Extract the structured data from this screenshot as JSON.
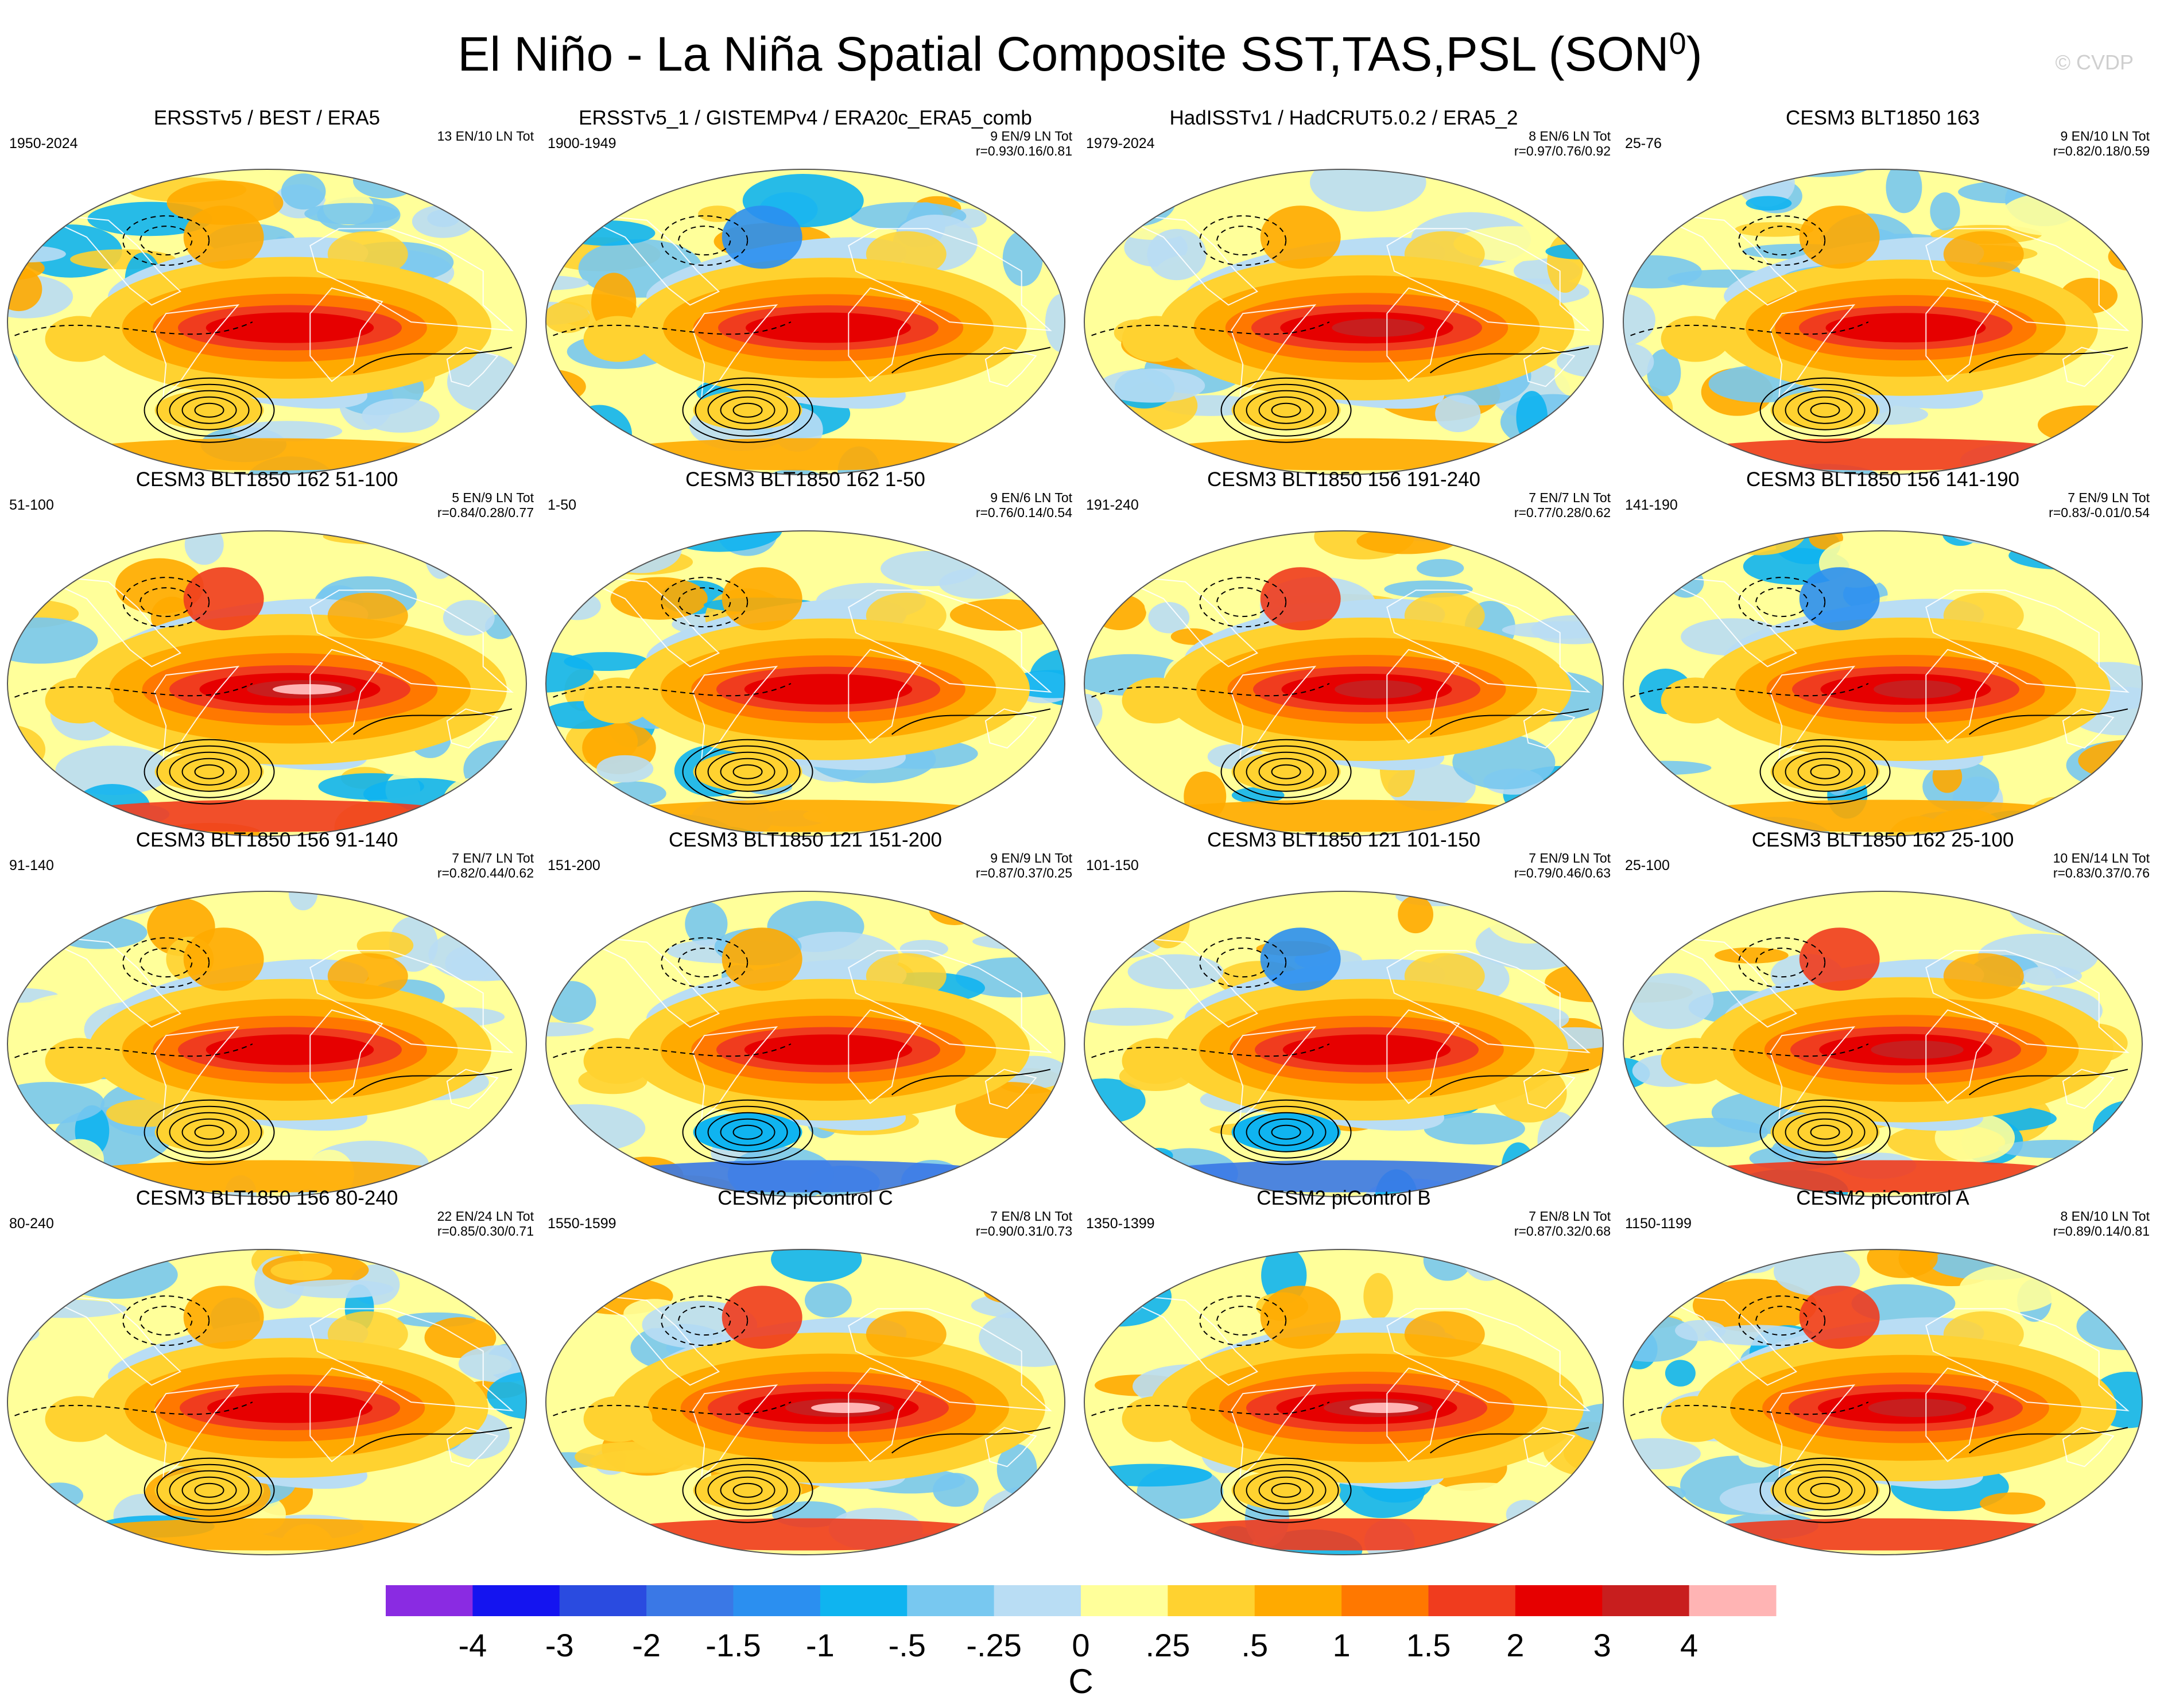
{
  "title": {
    "text": "El Niño - La Niña Spatial Composite SST,TAS,PSL (SON",
    "superscript": "0",
    "suffix": ")"
  },
  "watermark": "© CVDP",
  "palette": {
    "-4": "#8a2be2",
    "-3": "#1414f0",
    "-2": "#2a4be0",
    "-1.5": "#3a78e6",
    "-1": "#2b8ff0",
    "-.5": "#0fb4f0",
    "-.25": "#78c8f0",
    "0": "#b9ddf4",
    ".25": "#ffff9a",
    ".5": "#ffd230",
    "1": "#ffaa00",
    "1.5": "#ff7800",
    "2": "#f03c1e",
    "3": "#e60000",
    "4": "#c81e1e",
    "over": "#ffb4b4"
  },
  "panels": [
    {
      "title": "ERSSTv5 / BEST / ERA5",
      "years": "1950-2024",
      "counts": "13 EN/10 LN Tot",
      "corr": "",
      "w": 0.75,
      "nw": 0.0,
      "sp": 0.45,
      "na": 0.0
    },
    {
      "title": "ERSSTv5_1 / GISTEMPv4 / ERA20c_ERA5_comb",
      "years": "1900-1949",
      "counts": "9 EN/9 LN Tot",
      "corr": "r=0.93/0.16/0.81",
      "w": 0.7,
      "nw": -0.2,
      "sp": 0.4,
      "na": 0.0
    },
    {
      "title": "HadISSTv1 / HadCRUT5.0.2 / ERA5_2",
      "years": "1979-2024",
      "counts": "8 EN/6 LN Tot",
      "corr": "r=0.97/0.76/0.92",
      "w": 0.85,
      "nw": 0.3,
      "sp": 0.3,
      "na": 0.1
    },
    {
      "title": "CESM3 BLT1850 163",
      "years": "25-76",
      "counts": "9 EN/10 LN Tot",
      "corr": "r=0.82/0.18/0.59",
      "w": 0.6,
      "nw": 0.2,
      "sp": 0.6,
      "na": 0.4
    },
    {
      "title": "CESM3 BLT1850 162 51-100",
      "years": "51-100",
      "counts": "5 EN/9 LN Tot",
      "corr": "r=0.84/0.28/0.77",
      "w": 1.0,
      "nw": 0.9,
      "sp": 0.6,
      "na": 0.3
    },
    {
      "title": "CESM3 BLT1850 162 1-50",
      "years": "1-50",
      "counts": "9 EN/6 LN Tot",
      "corr": "r=0.76/0.14/0.54",
      "w": 0.75,
      "nw": 0.1,
      "sp": 0.4,
      "na": 0.0
    },
    {
      "title": "CESM3 BLT1850 156 191-240",
      "years": "191-240",
      "counts": "7 EN/7 LN Tot",
      "corr": "r=0.77/0.28/0.62",
      "w": 0.8,
      "nw": 0.7,
      "sp": 0.3,
      "na": 0.2
    },
    {
      "title": "CESM3 BLT1850 156 141-190",
      "years": "141-190",
      "counts": "7 EN/9 LN Tot",
      "corr": "r=0.83/-0.01/0.54",
      "w": 0.8,
      "nw": -0.6,
      "sp": 0.4,
      "na": 0.1
    },
    {
      "title": "CESM3 BLT1850 156 91-140",
      "years": "91-140",
      "counts": "7 EN/7 LN Tot",
      "corr": "r=0.82/0.44/0.62",
      "w": 0.75,
      "nw": 0.2,
      "sp": 0.3,
      "na": 0.3
    },
    {
      "title": "CESM3 BLT1850 121 151-200",
      "years": "151-200",
      "counts": "9 EN/9 LN Tot",
      "corr": "r=0.87/0.37/0.25",
      "w": 0.75,
      "nw": 0.2,
      "sp": -0.5,
      "na": 0.0
    },
    {
      "title": "CESM3 BLT1850 121 101-150",
      "years": "101-150",
      "counts": "7 EN/9 LN Tot",
      "corr": "r=0.79/0.46/0.63",
      "w": 0.75,
      "nw": -0.7,
      "sp": -0.3,
      "na": 0.2
    },
    {
      "title": "CESM3 BLT1850 162 25-100",
      "years": "25-100",
      "counts": "10 EN/14 LN Tot",
      "corr": "r=0.83/0.37/0.76",
      "w": 0.85,
      "nw": 0.6,
      "sp": 0.5,
      "na": 0.3
    },
    {
      "title": "CESM3 BLT1850 156 80-240",
      "years": "80-240",
      "counts": "22 EN/24 LN Tot",
      "corr": "r=0.85/0.30/0.71",
      "w": 0.7,
      "nw": 0.2,
      "sp": 0.2,
      "na": 0.1
    },
    {
      "title": "CESM2 piControl C",
      "years": "1550-1599",
      "counts": "7 EN/8 LN Tot",
      "corr": "r=0.90/0.31/0.73",
      "w": 1.0,
      "nw": 0.7,
      "sp": 0.7,
      "na": 0.5
    },
    {
      "title": "CESM2 piControl B",
      "years": "1350-1399",
      "counts": "7 EN/8 LN Tot",
      "corr": "r=0.87/0.32/0.68",
      "w": 1.0,
      "nw": 0.3,
      "sp": 0.8,
      "na": 0.6
    },
    {
      "title": "CESM2 piControl A",
      "years": "1150-1199",
      "counts": "8 EN/10 LN Tot",
      "corr": "r=0.89/0.14/0.81",
      "w": 0.9,
      "nw": 0.6,
      "sp": 0.6,
      "na": 0.1
    }
  ],
  "colorbar": {
    "colors": [
      "#8a2be2",
      "#1414f0",
      "#2a4be0",
      "#3a78e6",
      "#2b8ff0",
      "#0fb4f0",
      "#78c8f0",
      "#b9ddf4",
      "#ffff9a",
      "#ffd230",
      "#ffaa00",
      "#ff7800",
      "#f03c1e",
      "#e60000",
      "#c81e1e",
      "#ffb4b4"
    ],
    "labels": [
      "-4",
      "-3",
      "-2",
      "-1.5",
      "-1",
      "-.5",
      "-.25",
      "0",
      ".25",
      ".5",
      "1",
      "1.5",
      "2",
      "3",
      "4"
    ],
    "unit": "C"
  }
}
